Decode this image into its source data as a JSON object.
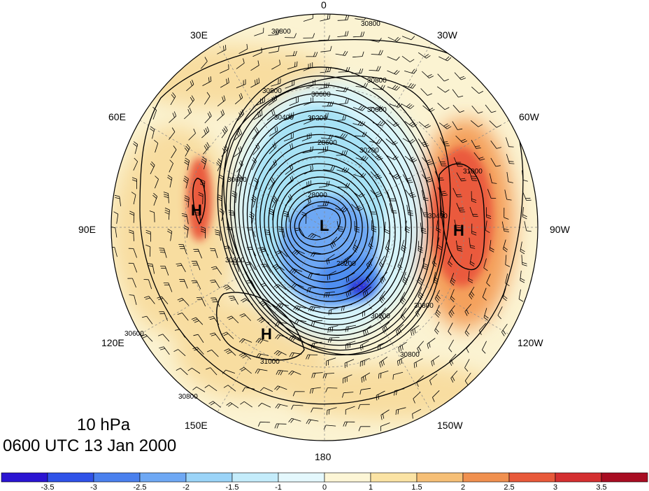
{
  "map": {
    "projection": "north-polar-stereographic",
    "shading_colors": {
      "deep_blue": "#2a2ad8",
      "mid_blue": "#4f8ef0",
      "light_blue": "#a7e2f5",
      "pale_blue": "#d6f4fb",
      "cream": "#fbf3d2",
      "tan": "#f8dda0",
      "orange": "#f4a05c",
      "red": "#ea5a3c"
    },
    "longitude_labels": {
      "top": "0",
      "bottom": "180",
      "left": "90E",
      "right": "90W",
      "ul30": "30E",
      "ul60": "60E",
      "ll120": "120E",
      "ll150": "150E",
      "ur30": "30W",
      "ur60": "60W",
      "lr120": "120W",
      "lr150": "150W"
    },
    "pressure_systems": {
      "low": "L",
      "high_east_asia": "H",
      "high_pacific": "H",
      "high_atlantic": "H"
    },
    "contour_labels": {
      "c1": "30800",
      "c2": "30800",
      "c3": "30800",
      "c4": "30600",
      "c5": "30600",
      "c6": "30400",
      "c7": "30200",
      "c8": "28600",
      "c9": "30200",
      "c10": "31000",
      "c11": "30400",
      "c12": "28000",
      "c13": "28200",
      "c14": "30200",
      "c15": "30800",
      "c16": "30800",
      "c17": "31000",
      "c18": "30800",
      "c19": "30800",
      "c20": "30600",
      "c21": "30600",
      "c22": "30800"
    }
  },
  "caption": {
    "level": "10 hPa",
    "datetime": "0600 UTC 13 Jan 2000"
  },
  "colorbar": {
    "colors": [
      "#2a14d2",
      "#2f52e8",
      "#4a80ee",
      "#6ea8f4",
      "#9bd4f8",
      "#c4ecfb",
      "#e4f8fd",
      "#fdf6d6",
      "#fbe3a4",
      "#f6bf76",
      "#f0904f",
      "#e8593a",
      "#d42f30",
      "#a80d22"
    ],
    "labels": [
      "-3.5",
      "-3",
      "-2.5",
      "-2",
      "-1.5",
      "-1",
      "0",
      "1",
      "1.5",
      "2",
      "2.5",
      "3",
      "3.5"
    ]
  }
}
